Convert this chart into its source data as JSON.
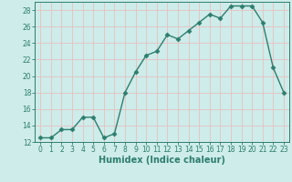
{
  "x": [
    0,
    1,
    2,
    3,
    4,
    5,
    6,
    7,
    8,
    9,
    10,
    11,
    12,
    13,
    14,
    15,
    16,
    17,
    18,
    19,
    20,
    21,
    22,
    23
  ],
  "y": [
    12.5,
    12.5,
    13.5,
    13.5,
    15.0,
    15.0,
    12.5,
    13.0,
    18.0,
    20.5,
    22.5,
    23.0,
    25.0,
    24.5,
    25.5,
    26.5,
    27.5,
    27.0,
    28.5,
    28.5,
    28.5,
    26.5,
    21.0,
    18.0
  ],
  "line_color": "#2e7d6e",
  "marker": "D",
  "markersize": 2.5,
  "linewidth": 1.0,
  "bg_color": "#cdecea",
  "grid_color": "#e8c0c0",
  "title": "",
  "xlabel": "Humidex (Indice chaleur)",
  "ylabel": "",
  "xlim": [
    -0.5,
    23.5
  ],
  "ylim": [
    12,
    29
  ],
  "yticks": [
    12,
    14,
    16,
    18,
    20,
    22,
    24,
    26,
    28
  ],
  "xticks": [
    0,
    1,
    2,
    3,
    4,
    5,
    6,
    7,
    8,
    9,
    10,
    11,
    12,
    13,
    14,
    15,
    16,
    17,
    18,
    19,
    20,
    21,
    22,
    23
  ],
  "tick_color": "#2e7d6e",
  "label_color": "#2e7d6e",
  "xlabel_fontsize": 7,
  "tick_fontsize": 5.5
}
